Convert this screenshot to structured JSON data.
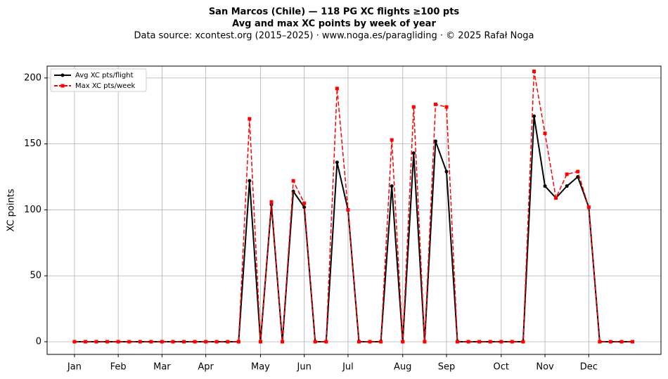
{
  "chart_data": {
    "type": "line",
    "title": [
      "San Marcos (Chile)  —  118 PG XC flights ≥100 pts",
      "Avg and max XC points by week of year"
    ],
    "subtitle": "Data source: xcontest.org (2015–2025)  ·  www.noga.es/paragliding  ·  © 2025 Rafał Noga",
    "ylabel": "XC points",
    "x": [
      1,
      2,
      3,
      4,
      5,
      6,
      7,
      8,
      9,
      10,
      11,
      12,
      13,
      14,
      15,
      16,
      17,
      18,
      19,
      20,
      21,
      22,
      23,
      24,
      25,
      26,
      27,
      28,
      29,
      30,
      31,
      32,
      33,
      34,
      35,
      36,
      37,
      38,
      39,
      40,
      41,
      42,
      43,
      44,
      45,
      46,
      47,
      48,
      49,
      50,
      51,
      52
    ],
    "series": [
      {
        "name": "Avg XC pts/flight",
        "color": "#000000",
        "style": "solid",
        "marker": "circle",
        "values": [
          0,
          0,
          0,
          0,
          0,
          0,
          0,
          0,
          0,
          0,
          0,
          0,
          0,
          0,
          0,
          0,
          122,
          0,
          104,
          0,
          114,
          102,
          0,
          0,
          136,
          100,
          0,
          0,
          0,
          118,
          0,
          143,
          0,
          152,
          129,
          0,
          0,
          0,
          0,
          0,
          0,
          0,
          171,
          118,
          109,
          118,
          125,
          102,
          0,
          0,
          0,
          0
        ]
      },
      {
        "name": "Max XC pts/week",
        "color": "#ff0000",
        "style": "dashed",
        "marker": "square",
        "values": [
          0,
          0,
          0,
          0,
          0,
          0,
          0,
          0,
          0,
          0,
          0,
          0,
          0,
          0,
          0,
          0,
          169,
          0,
          106,
          0,
          122,
          105,
          0,
          0,
          192,
          100,
          0,
          0,
          0,
          153,
          0,
          178,
          0,
          180,
          178,
          0,
          0,
          0,
          0,
          0,
          0,
          0,
          205,
          158,
          109,
          127,
          129,
          102,
          0,
          0,
          0,
          0
        ]
      }
    ],
    "xlim": [
      -1.5,
      54.6
    ],
    "xticks": [
      {
        "value": 1,
        "label": "Jan"
      },
      {
        "value": 5,
        "label": "Feb"
      },
      {
        "value": 9,
        "label": "Mar"
      },
      {
        "value": 13,
        "label": "Apr"
      },
      {
        "value": 18,
        "label": "May"
      },
      {
        "value": 22,
        "label": "Jun"
      },
      {
        "value": 26,
        "label": "Jul"
      },
      {
        "value": 31,
        "label": "Aug"
      },
      {
        "value": 35,
        "label": "Sep"
      },
      {
        "value": 40,
        "label": "Oct"
      },
      {
        "value": 44,
        "label": "Nov"
      },
      {
        "value": 48,
        "label": "Dec"
      }
    ],
    "ylim": [
      -9.6,
      209
    ],
    "yticks": [
      0,
      50,
      100,
      150,
      200
    ],
    "grid": true,
    "legend": "upper left"
  }
}
